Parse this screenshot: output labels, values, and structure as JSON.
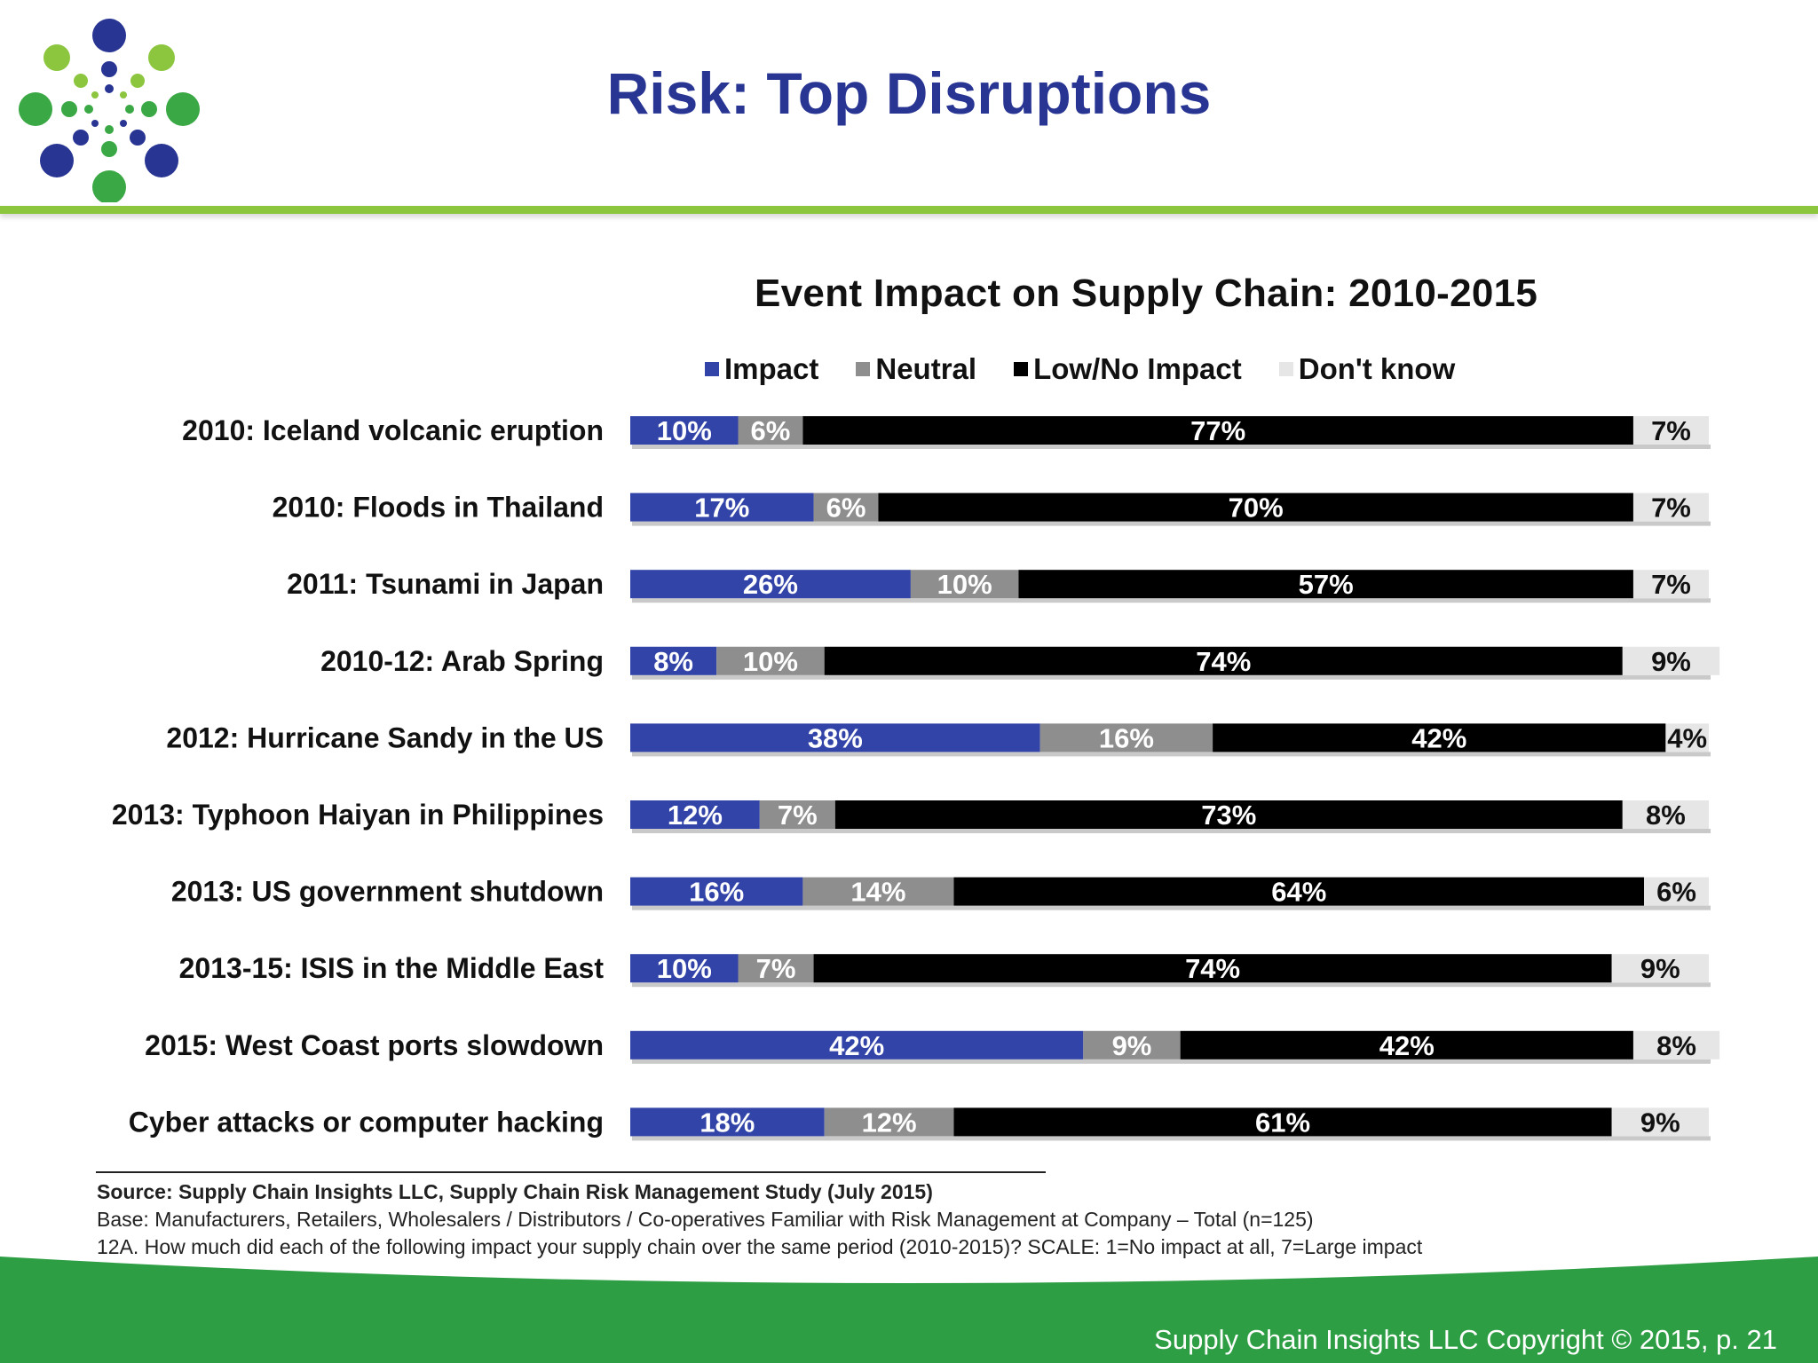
{
  "slide": {
    "title": "Risk:  Top Disruptions",
    "copyright": "Supply Chain Insights LLC Copyright © 2015, p. 21"
  },
  "colors": {
    "impact": "#3344a8",
    "neutral": "#8e8e8e",
    "low_no_impact": "#000000",
    "dont_know": "#e6e6e6",
    "title": "#283593",
    "accent_green": "#8cc63f",
    "footer_green": "#2e9e44"
  },
  "logo": {
    "icon": "dot-burst-logo-icon"
  },
  "source": {
    "line1": "Source:  Supply Chain Insights LLC, Supply Chain Risk Management Study (July 2015)",
    "line2": "Base:  Manufacturers, Retailers, Wholesalers / Distributors / Co-operatives Familiar with Risk Management at Company – Total (n=125)",
    "line3": "12A. How much did each of the following impact your supply chain over the same period (2010-2015)? SCALE: 1=No impact at all, 7=Large impact"
  },
  "chart_data": {
    "type": "bar",
    "orientation": "horizontal",
    "stacked": true,
    "title": "Event Impact on Supply Chain: 2010-2015",
    "legend_placement": "top",
    "categories": [
      "2010: Iceland volcanic eruption",
      "2010: Floods in Thailand",
      "2011: Tsunami in Japan",
      "2010-12: Arab Spring",
      "2012: Hurricane Sandy in the US",
      "2013: Typhoon Haiyan in Philippines",
      "2013: US government shutdown",
      "2013-15: ISIS in the Middle East",
      "2015: West Coast ports slowdown",
      "Cyber attacks or computer hacking"
    ],
    "series": [
      {
        "name": "Impact",
        "color": "#3344a8",
        "values": [
          10,
          17,
          26,
          8,
          38,
          12,
          16,
          10,
          42,
          18
        ]
      },
      {
        "name": "Neutral",
        "color": "#8e8e8e",
        "values": [
          6,
          6,
          10,
          10,
          16,
          7,
          14,
          7,
          9,
          12
        ]
      },
      {
        "name": "Low/No Impact",
        "color": "#000000",
        "values": [
          77,
          70,
          57,
          74,
          42,
          73,
          64,
          74,
          42,
          61
        ]
      },
      {
        "name": "Don't know",
        "color": "#e6e6e6",
        "values": [
          7,
          7,
          7,
          9,
          4,
          8,
          6,
          9,
          8,
          9
        ]
      }
    ],
    "value_suffix": "%",
    "xlim": [
      0,
      100
    ],
    "grid": false
  }
}
